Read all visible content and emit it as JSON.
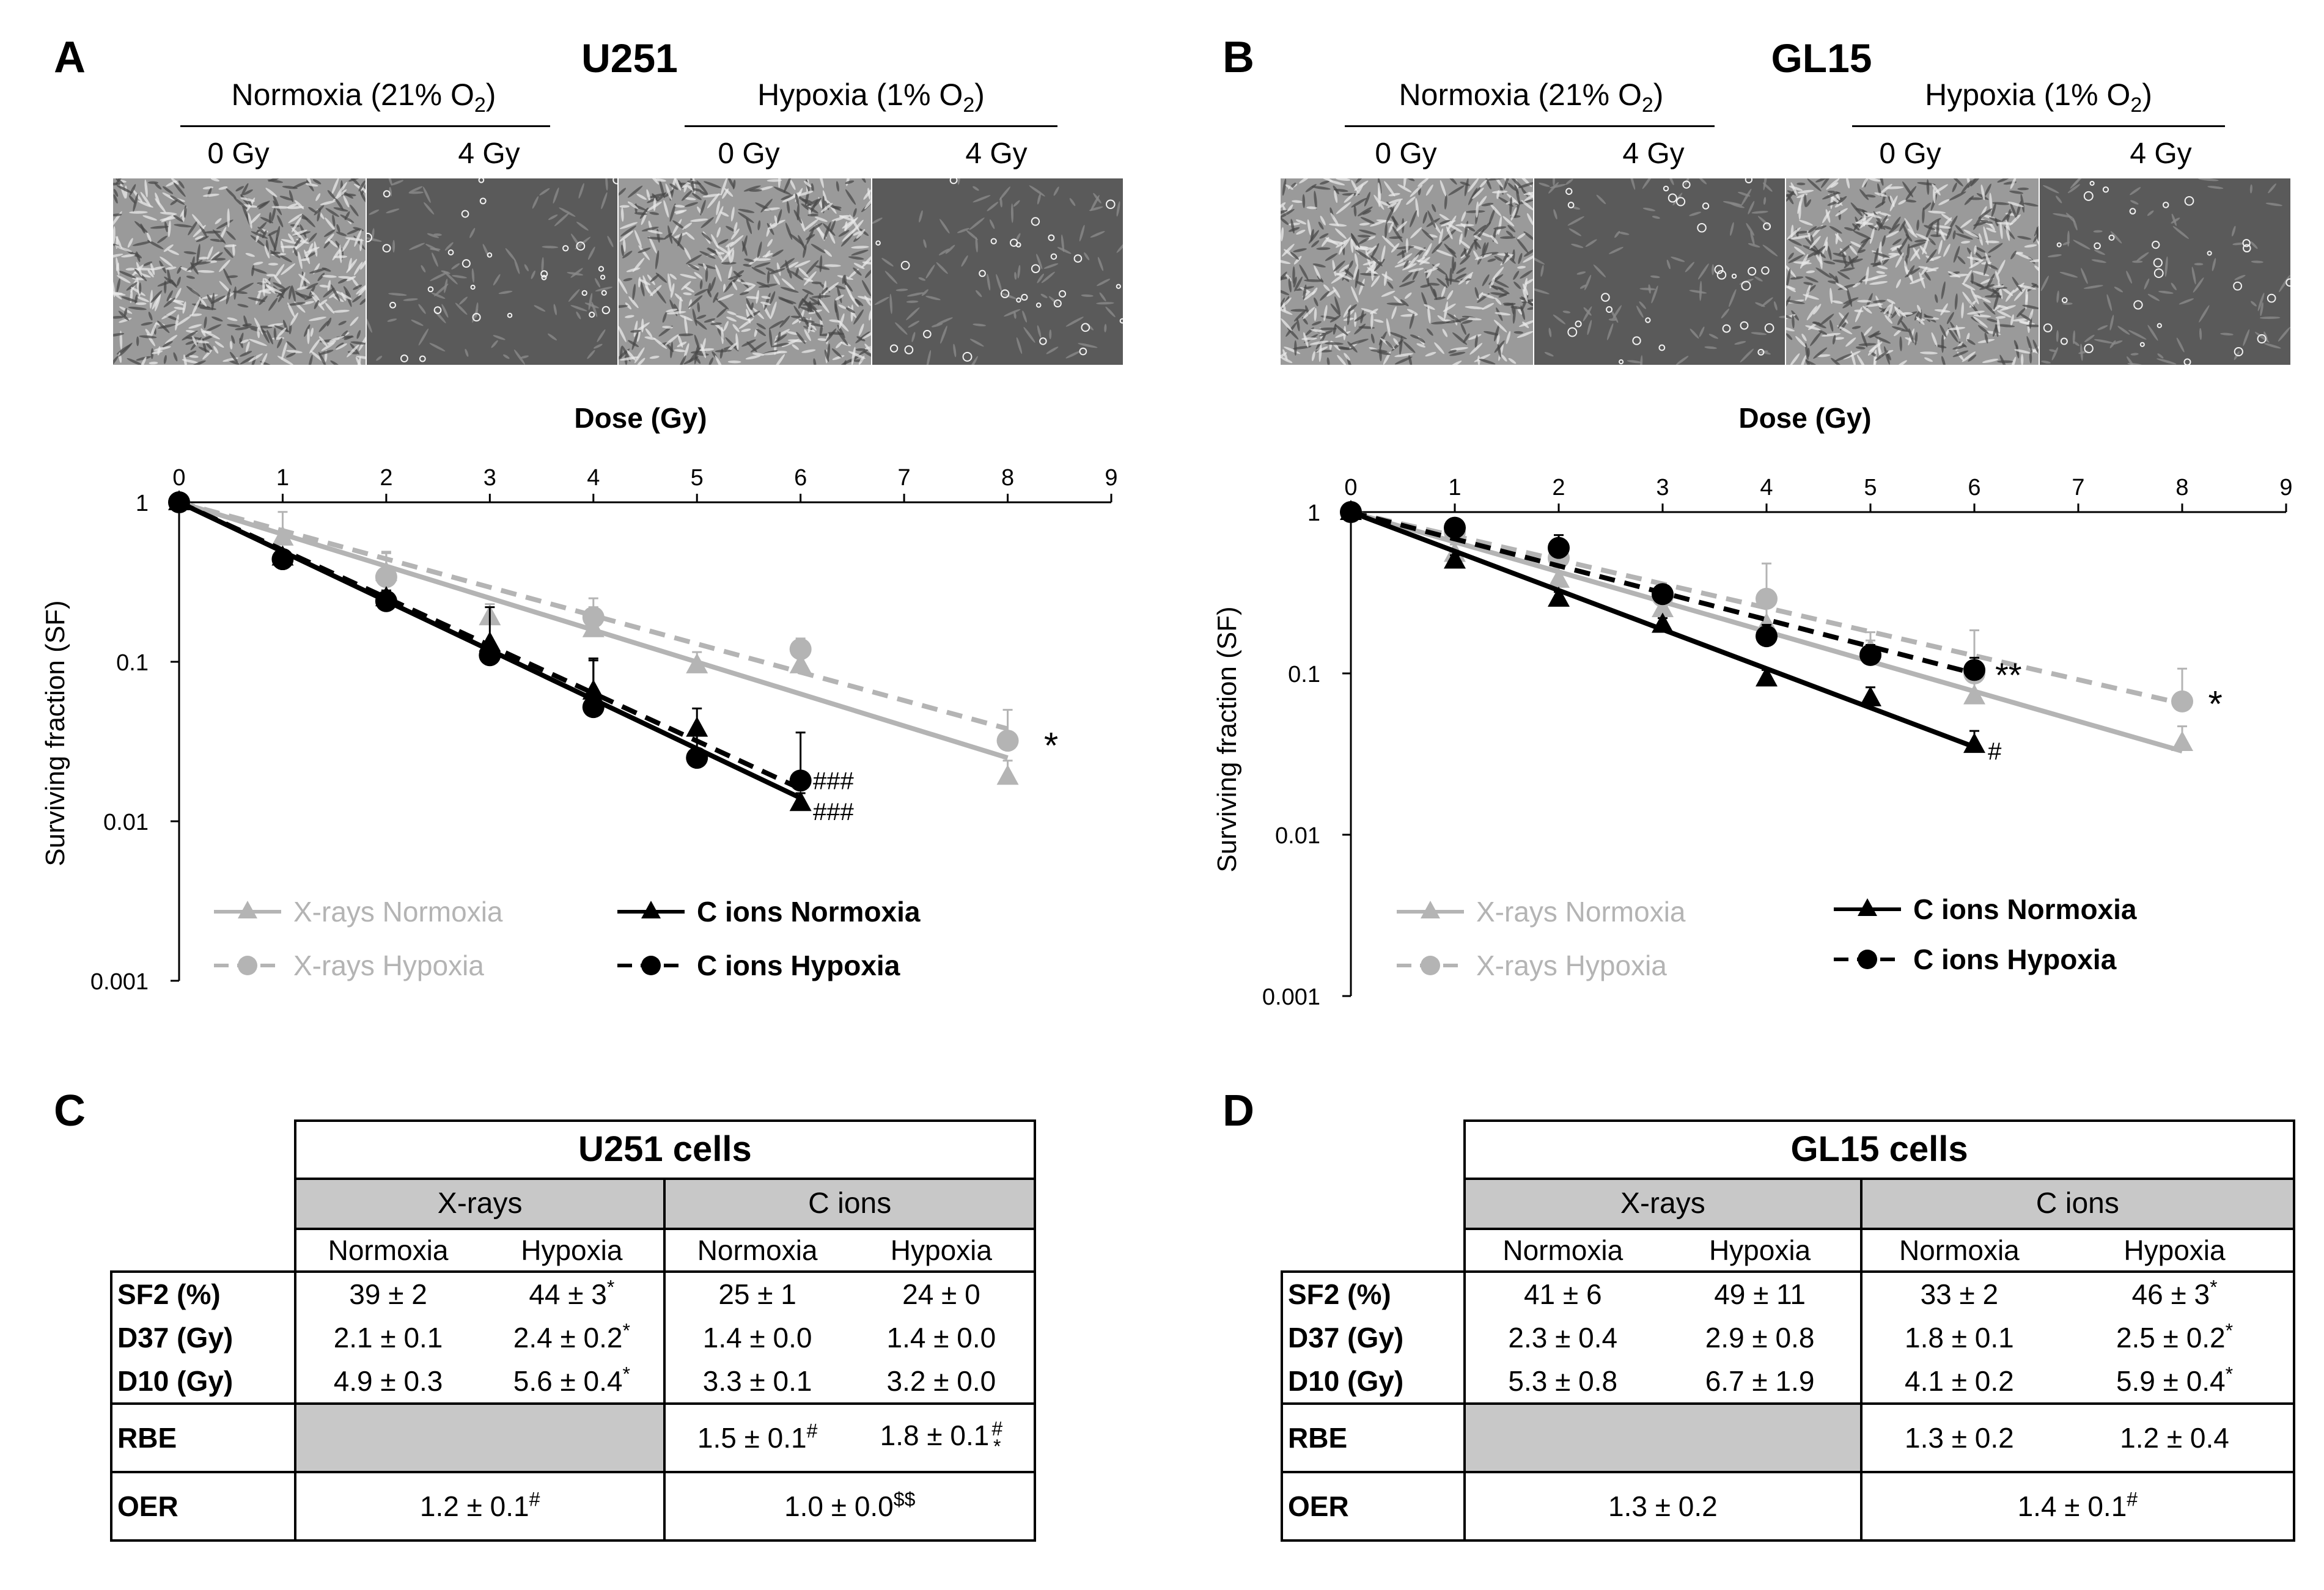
{
  "panels": {
    "A": "A",
    "B": "B",
    "C": "C",
    "D": "D"
  },
  "micro": {
    "U251": {
      "title": "U251",
      "normoxia": "Normoxia (21% O",
      "hypoxia": "Hypoxia (1% O",
      "o2_sub": "2",
      "close": ")",
      "doses": [
        "0 Gy",
        "4 Gy",
        "0 Gy",
        "4 Gy"
      ]
    },
    "GL15": {
      "title": "GL15",
      "normoxia": "Normoxia (21% O",
      "hypoxia": "Hypoxia (1% O",
      "o2_sub": "2",
      "close": ")",
      "doses": [
        "0 Gy",
        "4 Gy",
        "0 Gy",
        "4 Gy"
      ]
    }
  },
  "chart_data": [
    {
      "id": "U251",
      "type": "scatter",
      "title": "",
      "xlabel": "Dose (Gy)",
      "ylabel": "Surviving fraction (SF)",
      "xlim": [
        0,
        9
      ],
      "ylim": [
        0.001,
        1
      ],
      "yscale": "log",
      "x_ticks": [
        "0",
        "1",
        "2",
        "3",
        "4",
        "5",
        "6",
        "7",
        "8",
        "9"
      ],
      "y_ticks": [
        "1",
        "0.1",
        "0.01",
        "0.001"
      ],
      "series": [
        {
          "name": "X-rays Normoxia",
          "color": "#b4b4b4",
          "marker": "triangle",
          "dash": false,
          "x": [
            0,
            1,
            2,
            3,
            4,
            5,
            6,
            8
          ],
          "y": [
            1,
            0.6,
            0.36,
            0.19,
            0.16,
            0.095,
            0.095,
            0.019
          ],
          "err": [
            0,
            0.27,
            0.13,
            0.04,
            0.06,
            0.02,
            0.03,
            0.005
          ],
          "fit": [
            [
              0,
              1
            ],
            [
              8,
              0.025
            ]
          ]
        },
        {
          "name": "X-rays Hypoxia",
          "color": "#b4b4b4",
          "marker": "circle",
          "dash": true,
          "x": [
            0,
            2,
            4,
            6,
            8
          ],
          "y": [
            1,
            0.34,
            0.19,
            0.12,
            0.032
          ],
          "err": [
            0,
            0.14,
            0.06,
            0.02,
            0.018
          ],
          "fit": [
            [
              0,
              1
            ],
            [
              8,
              0.038
            ]
          ]
        },
        {
          "name": "C ions Normoxia",
          "color": "#000000",
          "marker": "triangle",
          "dash": false,
          "x": [
            0,
            1,
            2,
            3,
            4,
            5,
            6
          ],
          "y": [
            1,
            0.45,
            0.25,
            0.13,
            0.065,
            0.038,
            0.013
          ],
          "err": [
            0,
            0.05,
            0.03,
            0.09,
            0.04,
            0.013,
            0.002
          ],
          "fit": [
            [
              0,
              1
            ],
            [
              6,
              0.014
            ]
          ]
        },
        {
          "name": "C ions Hypoxia",
          "color": "#000000",
          "marker": "circle",
          "dash": true,
          "x": [
            0,
            1,
            2,
            3,
            4,
            5,
            6
          ],
          "y": [
            1,
            0.44,
            0.24,
            0.11,
            0.052,
            0.025,
            0.018
          ],
          "err": [
            0,
            0.05,
            0.03,
            0.02,
            0.05,
            0.01,
            0.018
          ],
          "fit": [
            [
              0,
              1
            ],
            [
              6,
              0.016
            ]
          ]
        }
      ],
      "annotations": [
        {
          "text": "*",
          "x": 8.35,
          "y": 0.03,
          "size": 60
        },
        {
          "text": "###",
          "x": 6.12,
          "y": 0.018,
          "size": 40
        },
        {
          "text": "###",
          "x": 6.12,
          "y": 0.0115,
          "size": 40
        }
      ]
    },
    {
      "id": "GL15",
      "type": "scatter",
      "title": "",
      "xlabel": "Dose (Gy)",
      "ylabel": "Surviving fraction (SF)",
      "xlim": [
        0,
        9
      ],
      "ylim": [
        0.001,
        1
      ],
      "yscale": "log",
      "x_ticks": [
        "0",
        "1",
        "2",
        "3",
        "4",
        "5",
        "6",
        "7",
        "8",
        "9"
      ],
      "y_ticks": [
        "1",
        "0.1",
        "0.01",
        "0.001"
      ],
      "series": [
        {
          "name": "X-rays Normoxia",
          "color": "#b4b4b4",
          "marker": "triangle",
          "dash": false,
          "x": [
            0,
            1,
            2,
            3,
            4,
            5,
            6,
            8
          ],
          "y": [
            1,
            0.55,
            0.38,
            0.25,
            0.2,
            0.14,
            0.072,
            0.037
          ],
          "err": [
            0,
            0.08,
            0.1,
            0.05,
            0.06,
            0.04,
            0.02,
            0.01
          ],
          "fit": [
            [
              0,
              1
            ],
            [
              8,
              0.033
            ]
          ]
        },
        {
          "name": "X-rays Hypoxia",
          "color": "#b4b4b4",
          "marker": "circle",
          "dash": true,
          "x": [
            0,
            1,
            2,
            3,
            4,
            5,
            6,
            8
          ],
          "y": [
            1,
            0.75,
            0.52,
            0.3,
            0.29,
            0.13,
            0.1,
            0.067
          ],
          "err": [
            0,
            0.06,
            0.08,
            0.05,
            0.19,
            0.03,
            0.085,
            0.04
          ],
          "fit": [
            [
              0,
              1
            ],
            [
              8,
              0.065
            ]
          ]
        },
        {
          "name": "C ions Normoxia",
          "color": "#000000",
          "marker": "triangle",
          "dash": false,
          "x": [
            0,
            1,
            2,
            3,
            4,
            5,
            6
          ],
          "y": [
            1,
            0.5,
            0.29,
            0.2,
            0.093,
            0.07,
            0.036
          ],
          "err": [
            0,
            0.04,
            0.03,
            0.02,
            0.012,
            0.012,
            0.008
          ],
          "fit": [
            [
              0,
              1
            ],
            [
              6,
              0.035
            ]
          ]
        },
        {
          "name": "C ions Hypoxia",
          "color": "#000000",
          "marker": "circle",
          "dash": true,
          "x": [
            0,
            1,
            2,
            3,
            4,
            5,
            6
          ],
          "y": [
            1,
            0.8,
            0.6,
            0.31,
            0.17,
            0.13,
            0.105
          ],
          "err": [
            0,
            0.06,
            0.12,
            0.04,
            0.03,
            0.02,
            0.02
          ],
          "fit": [
            [
              0,
              1
            ],
            [
              6,
              0.1
            ]
          ]
        }
      ],
      "annotations": [
        {
          "text": "**",
          "x": 6.2,
          "y": 0.098,
          "size": 56
        },
        {
          "text": "*",
          "x": 8.25,
          "y": 0.065,
          "size": 60
        },
        {
          "text": "#",
          "x": 6.13,
          "y": 0.033,
          "size": 40
        }
      ]
    }
  ],
  "tables": {
    "U251": {
      "title": "U251 cells",
      "groups": [
        "X-rays",
        "C ions"
      ],
      "subs": [
        "Normoxia",
        "Hypoxia",
        "Normoxia",
        "Hypoxia"
      ],
      "rows": [
        {
          "label": "SF2 (%)",
          "cells": [
            {
              "v": "39 ± 2"
            },
            {
              "v": "44 ± 3",
              "sup": "*"
            },
            {
              "v": "25 ± 1"
            },
            {
              "v": "24 ± 0"
            }
          ]
        },
        {
          "label": "D37 (Gy)",
          "cells": [
            {
              "v": "2.1 ± 0.1"
            },
            {
              "v": "2.4 ± 0.2",
              "sup": "*"
            },
            {
              "v": "1.4 ± 0.0"
            },
            {
              "v": "1.4 ± 0.0"
            }
          ]
        },
        {
          "label": "D10 (Gy)",
          "cells": [
            {
              "v": "4.9 ± 0.3"
            },
            {
              "v": "5.6 ± 0.4",
              "sup": "*"
            },
            {
              "v": "3.3 ± 0.1"
            },
            {
              "v": "3.2 ± 0.0"
            }
          ]
        }
      ],
      "rbe": {
        "label": "RBE",
        "cells": [
          {
            "v": "1.5 ± 0.1",
            "sup": "#"
          },
          {
            "v": "1.8 ± 0.1",
            "stack": [
              "#",
              "*"
            ]
          }
        ]
      },
      "oer": {
        "label": "OER",
        "cells": [
          {
            "v": "1.2 ± 0.1",
            "sup": "#"
          },
          {
            "v": "1.0 ± 0.0",
            "sup": "$$"
          }
        ]
      }
    },
    "GL15": {
      "title": "GL15 cells",
      "groups": [
        "X-rays",
        "C ions"
      ],
      "subs": [
        "Normoxia",
        "Hypoxia",
        "Normoxia",
        "Hypoxia"
      ],
      "rows": [
        {
          "label": "SF2 (%)",
          "cells": [
            {
              "v": "41 ± 6"
            },
            {
              "v": "49 ± 11"
            },
            {
              "v": "33 ± 2"
            },
            {
              "v": "46 ± 3",
              "sup": "*"
            }
          ]
        },
        {
          "label": "D37 (Gy)",
          "cells": [
            {
              "v": "2.3 ± 0.4"
            },
            {
              "v": "2.9 ± 0.8"
            },
            {
              "v": "1.8 ± 0.1"
            },
            {
              "v": "2.5 ± 0.2",
              "sup": "*"
            }
          ]
        },
        {
          "label": "D10 (Gy)",
          "cells": [
            {
              "v": "5.3 ± 0.8"
            },
            {
              "v": "6.7 ± 1.9"
            },
            {
              "v": "4.1 ± 0.2"
            },
            {
              "v": "5.9 ± 0.4",
              "sup": "*"
            }
          ]
        }
      ],
      "rbe": {
        "label": "RBE",
        "cells": [
          {
            "v": "1.3 ± 0.2"
          },
          {
            "v": "1.2 ± 0.4"
          }
        ]
      },
      "oer": {
        "label": "OER",
        "cells": [
          {
            "v": "1.3 ± 0.2"
          },
          {
            "v": "1.4 ± 0.1",
            "sup": "#"
          }
        ]
      }
    }
  }
}
